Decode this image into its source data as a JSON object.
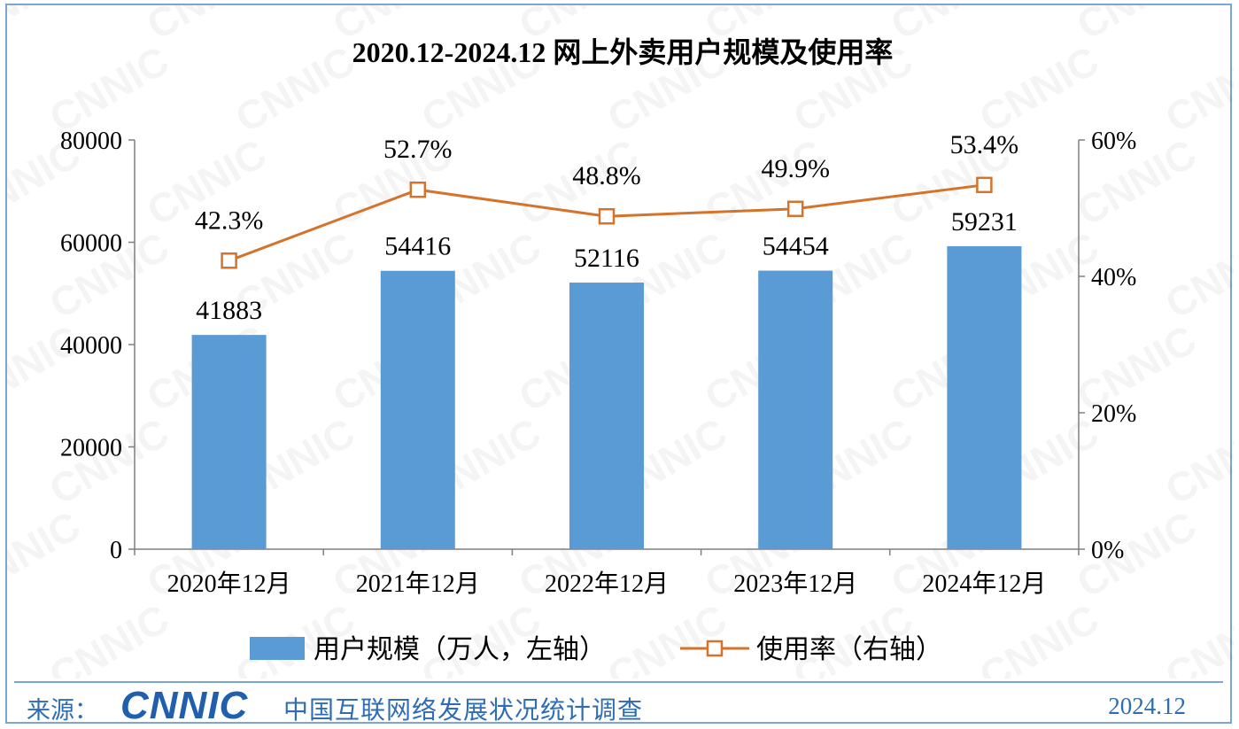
{
  "chart_data": {
    "type": "bar",
    "title": "2020.12-2024.12 网上外卖用户规模及使用率",
    "categories": [
      "2020年12月",
      "2021年12月",
      "2022年12月",
      "2023年12月",
      "2024年12月"
    ],
    "series": [
      {
        "name": "用户规模（万人，左轴）",
        "type": "bar",
        "axis": "left",
        "color": "#5b9bd5",
        "values": [
          41883,
          54416,
          52116,
          54454,
          59231
        ],
        "labels": [
          "41883",
          "54416",
          "52116",
          "54454",
          "59231"
        ]
      },
      {
        "name": "使用率（右轴）",
        "type": "line",
        "axis": "right",
        "color": "#d4742c",
        "values": [
          42.3,
          52.7,
          48.8,
          49.9,
          53.4
        ],
        "labels": [
          "42.3%",
          "52.7%",
          "48.8%",
          "49.9%",
          "53.4%"
        ]
      }
    ],
    "y_left": {
      "range": [
        0,
        80000
      ],
      "ticks": [
        "0",
        "20000",
        "40000",
        "60000",
        "80000"
      ]
    },
    "y_right": {
      "range": [
        0,
        60
      ],
      "ticks": [
        "0%",
        "20%",
        "40%",
        "60%"
      ]
    },
    "grid": false,
    "legend": "bottom"
  },
  "footer": {
    "source_label": "来源：",
    "logo_text": "CNNIC",
    "survey_name": "中国互联网络发展状况统计调查",
    "date": "2024.12"
  },
  "watermark": "CNNIC"
}
